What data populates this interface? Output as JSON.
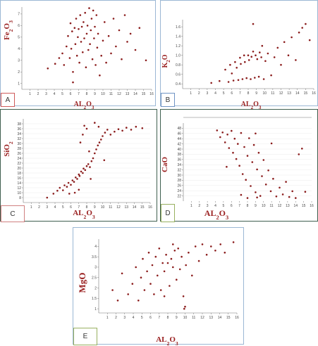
{
  "panels": [
    {
      "label": "A",
      "colors": {
        "frame": "#9bb7d4",
        "tag_border": "#cf5b5b"
      }
    },
    {
      "label": "B",
      "colors": {
        "frame": "#9bb7d4",
        "tag_border": "#6f93c4"
      }
    },
    {
      "label": "C",
      "colors": {
        "frame": "#3f5f4f",
        "tag_border": "#d08080"
      }
    },
    {
      "label": "D",
      "colors": {
        "frame": "#3f5f4f",
        "tag_border": "#98b060"
      }
    },
    {
      "label": "E",
      "colors": {
        "frame": "#9bb7d4",
        "tag_border": "#98b060"
      }
    }
  ],
  "chart_data": [
    {
      "type": "scatter",
      "xlabel": "AL₂O₃",
      "ylabel": "Fe₂O₃",
      "xlim": [
        0,
        16
      ],
      "ylim": [
        0.5,
        7.6
      ],
      "xticks": [
        "1",
        "2",
        "3",
        "4",
        "5",
        "6",
        "7",
        "8",
        "9",
        "10",
        "11",
        "12",
        "13",
        "14",
        "15",
        "16"
      ],
      "yticks": [
        "1",
        "2",
        "3",
        "4",
        "5",
        "6",
        "7"
      ],
      "points": [
        [
          3.2,
          2.3
        ],
        [
          4.1,
          2.7
        ],
        [
          4.6,
          3.2
        ],
        [
          5.0,
          3.6
        ],
        [
          5.2,
          2.6
        ],
        [
          5.5,
          4.2
        ],
        [
          5.7,
          5.1
        ],
        [
          5.9,
          3.2
        ],
        [
          6.0,
          6.2
        ],
        [
          6.1,
          4.0
        ],
        [
          6.2,
          5.5
        ],
        [
          6.3,
          2.0
        ],
        [
          6.3,
          1.1
        ],
        [
          6.5,
          5.8
        ],
        [
          6.6,
          4.4
        ],
        [
          6.7,
          6.6
        ],
        [
          6.8,
          3.4
        ],
        [
          6.9,
          5.0
        ],
        [
          7.0,
          5.7
        ],
        [
          7.1,
          2.8
        ],
        [
          7.2,
          6.9
        ],
        [
          7.3,
          4.6
        ],
        [
          7.4,
          5.9
        ],
        [
          7.5,
          3.7
        ],
        [
          7.6,
          6.3
        ],
        [
          7.7,
          4.9
        ],
        [
          7.8,
          7.1
        ],
        [
          7.9,
          2.4
        ],
        [
          8.0,
          5.3
        ],
        [
          8.1,
          6.0
        ],
        [
          8.2,
          3.9
        ],
        [
          8.3,
          7.5
        ],
        [
          8.4,
          4.4
        ],
        [
          8.5,
          5.6
        ],
        [
          8.6,
          6.6
        ],
        [
          8.7,
          3.1
        ],
        [
          8.8,
          7.3
        ],
        [
          8.9,
          4.9
        ],
        [
          9.0,
          5.9
        ],
        [
          9.1,
          2.6
        ],
        [
          9.2,
          6.9
        ],
        [
          9.3,
          4.1
        ],
        [
          9.4,
          5.3
        ],
        [
          9.6,
          1.7
        ],
        [
          9.8,
          3.4
        ],
        [
          10.0,
          4.7
        ],
        [
          10.2,
          6.3
        ],
        [
          10.4,
          2.8
        ],
        [
          10.7,
          5.1
        ],
        [
          11.0,
          3.6
        ],
        [
          11.3,
          6.6
        ],
        [
          11.6,
          4.2
        ],
        [
          12.0,
          5.6
        ],
        [
          12.3,
          3.1
        ],
        [
          12.7,
          6.9
        ],
        [
          13.0,
          4.6
        ],
        [
          13.4,
          5.3
        ],
        [
          14.0,
          3.9
        ],
        [
          14.5,
          5.8
        ],
        [
          15.3,
          3.0
        ]
      ]
    },
    {
      "type": "scatter",
      "xlabel": "AL₂O₃",
      "ylabel": "K₂O",
      "xlim": [
        0,
        16
      ],
      "ylim": [
        0.3,
        1.75
      ],
      "xticks": [
        "1",
        "2",
        "3",
        "4",
        "5",
        "6",
        "7",
        "8",
        "9",
        "10",
        "11",
        "12",
        "13",
        "14",
        "15",
        "16"
      ],
      "yticks": [
        "0.4",
        "0.6",
        "0.8",
        "1.0",
        "1.2",
        "1.4",
        "1.6"
      ],
      "points": [
        [
          3.5,
          0.42
        ],
        [
          4.5,
          0.46
        ],
        [
          5.2,
          0.7
        ],
        [
          5.6,
          0.44
        ],
        [
          5.8,
          0.8
        ],
        [
          6.0,
          0.62
        ],
        [
          6.2,
          0.47
        ],
        [
          6.4,
          0.86
        ],
        [
          6.6,
          0.74
        ],
        [
          6.8,
          0.48
        ],
        [
          7.0,
          0.95
        ],
        [
          7.1,
          0.82
        ],
        [
          7.3,
          0.5
        ],
        [
          7.5,
          1.0
        ],
        [
          7.6,
          0.86
        ],
        [
          7.8,
          0.52
        ],
        [
          8.0,
          1.0
        ],
        [
          8.1,
          0.9
        ],
        [
          8.3,
          0.5
        ],
        [
          8.4,
          0.97
        ],
        [
          8.6,
          1.08
        ],
        [
          8.8,
          0.53
        ],
        [
          8.9,
          1.0
        ],
        [
          9.1,
          0.92
        ],
        [
          9.3,
          0.55
        ],
        [
          9.4,
          1.06
        ],
        [
          9.6,
          0.96
        ],
        [
          9.7,
          1.2
        ],
        [
          9.9,
          0.5
        ],
        [
          10.1,
          0.88
        ],
        [
          10.4,
          1.04
        ],
        [
          10.8,
          0.58
        ],
        [
          11.2,
          0.96
        ],
        [
          11.6,
          1.16
        ],
        [
          12.0,
          0.8
        ],
        [
          12.4,
          1.28
        ],
        [
          12.9,
          1.0
        ],
        [
          13.3,
          1.38
        ],
        [
          13.8,
          0.9
        ],
        [
          14.2,
          1.48
        ],
        [
          14.6,
          1.58
        ],
        [
          15.0,
          1.66
        ],
        [
          8.6,
          1.66
        ],
        [
          15.5,
          1.32
        ]
      ]
    },
    {
      "type": "scatter",
      "xlabel": "AL₂O₃",
      "ylabel": "SiO₂",
      "xlim": [
        0,
        16
      ],
      "ylim": [
        6,
        40
      ],
      "xticks": [
        "1",
        "2",
        "3",
        "4",
        "5",
        "6",
        "7",
        "8",
        "9",
        "10",
        "11",
        "12",
        "13",
        "14",
        "15",
        "16"
      ],
      "yticks": [
        "8",
        "10",
        "12",
        "14",
        "16",
        "18",
        "20",
        "22",
        "24",
        "26",
        "28",
        "30",
        "32",
        "34",
        "36",
        "38"
      ],
      "points": [
        [
          3.0,
          8.0
        ],
        [
          3.8,
          9.6
        ],
        [
          4.3,
          10.8
        ],
        [
          4.6,
          12.0
        ],
        [
          5.0,
          11.0
        ],
        [
          5.2,
          13.0
        ],
        [
          5.5,
          12.4
        ],
        [
          5.7,
          14.0
        ],
        [
          6.0,
          13.2
        ],
        [
          6.2,
          15.0
        ],
        [
          6.4,
          14.4
        ],
        [
          6.6,
          16.2
        ],
        [
          6.8,
          15.6
        ],
        [
          7.0,
          17.4
        ],
        [
          7.1,
          16.8
        ],
        [
          7.3,
          18.6
        ],
        [
          7.5,
          18.0
        ],
        [
          7.6,
          19.8
        ],
        [
          7.8,
          19.2
        ],
        [
          8.0,
          20.8
        ],
        [
          8.2,
          21.6
        ],
        [
          8.4,
          20.4
        ],
        [
          8.6,
          22.8
        ],
        [
          8.8,
          24.0
        ],
        [
          9.0,
          26.0
        ],
        [
          9.2,
          27.6
        ],
        [
          9.4,
          29.2
        ],
        [
          9.6,
          30.4
        ],
        [
          9.8,
          31.6
        ],
        [
          10.0,
          33.0
        ],
        [
          10.3,
          34.4
        ],
        [
          10.6,
          35.6
        ],
        [
          11.0,
          33.6
        ],
        [
          11.5,
          34.8
        ],
        [
          12.0,
          35.8
        ],
        [
          12.5,
          35.2
        ],
        [
          13.0,
          36.4
        ],
        [
          13.6,
          35.6
        ],
        [
          14.2,
          36.8
        ],
        [
          15.0,
          36.2
        ],
        [
          7.2,
          30.4
        ],
        [
          7.5,
          33.6
        ],
        [
          7.7,
          37.2
        ],
        [
          8.0,
          36.0
        ],
        [
          8.3,
          26.8
        ],
        [
          9.0,
          38.4
        ],
        [
          9.5,
          36.8
        ],
        [
          6.5,
          10.0
        ],
        [
          7.0,
          11.2
        ],
        [
          8.5,
          15.6
        ],
        [
          5.8,
          9.6
        ],
        [
          10.2,
          23.2
        ]
      ]
    },
    {
      "type": "scatter",
      "xlabel": "AL₂O₃",
      "ylabel": "CaO",
      "xlim": [
        0,
        16
      ],
      "ylim": [
        20,
        50
      ],
      "xticks": [
        "1",
        "2",
        "3",
        "4",
        "5",
        "6",
        "7",
        "8",
        "9",
        "10",
        "11",
        "12",
        "13",
        "14",
        "15",
        "16"
      ],
      "yticks": [
        "22",
        "24",
        "26",
        "28",
        "30",
        "32",
        "34",
        "36",
        "38",
        "40",
        "42",
        "44",
        "46",
        "48"
      ],
      "points": [
        [
          4.2,
          47.2
        ],
        [
          4.6,
          44.6
        ],
        [
          4.9,
          46.4
        ],
        [
          5.2,
          42.6
        ],
        [
          5.5,
          45.6
        ],
        [
          5.7,
          40.4
        ],
        [
          6.0,
          47.0
        ],
        [
          6.2,
          38.6
        ],
        [
          6.4,
          44.0
        ],
        [
          6.6,
          36.2
        ],
        [
          6.8,
          42.0
        ],
        [
          7.0,
          33.6
        ],
        [
          7.2,
          46.2
        ],
        [
          7.4,
          30.4
        ],
        [
          7.6,
          40.8
        ],
        [
          7.8,
          28.2
        ],
        [
          8.0,
          37.4
        ],
        [
          8.2,
          44.2
        ],
        [
          8.4,
          25.8
        ],
        [
          8.6,
          35.0
        ],
        [
          8.8,
          41.6
        ],
        [
          9.0,
          23.4
        ],
        [
          9.2,
          32.2
        ],
        [
          9.4,
          38.6
        ],
        [
          9.6,
          22.0
        ],
        [
          9.8,
          29.6
        ],
        [
          10.0,
          35.8
        ],
        [
          10.3,
          26.4
        ],
        [
          10.6,
          31.8
        ],
        [
          10.9,
          23.8
        ],
        [
          11.2,
          28.6
        ],
        [
          11.6,
          21.8
        ],
        [
          12.0,
          25.2
        ],
        [
          12.4,
          22.6
        ],
        [
          12.8,
          27.4
        ],
        [
          13.2,
          21.6
        ],
        [
          13.6,
          23.8
        ],
        [
          14.0,
          21.2
        ],
        [
          14.4,
          38.0
        ],
        [
          14.8,
          40.2
        ],
        [
          15.2,
          23.6
        ],
        [
          8.0,
          21.2
        ],
        [
          9.0,
          46.0
        ],
        [
          9.2,
          21.4
        ],
        [
          11.0,
          42.2
        ],
        [
          7.2,
          22.4
        ],
        [
          5.4,
          33.2
        ]
      ]
    },
    {
      "type": "scatter",
      "xlabel": "AL₂O₃",
      "ylabel": "MgO",
      "xlim": [
        0,
        16
      ],
      "ylim": [
        0.8,
        4.35
      ],
      "xticks": [
        "1",
        "2",
        "3",
        "4",
        "5",
        "6",
        "7",
        "8",
        "9",
        "10",
        "11",
        "12",
        "13",
        "14",
        "15",
        "16"
      ],
      "yticks": [
        "1",
        "1.5",
        "2",
        "2.5",
        "3",
        "3.5",
        "4"
      ],
      "points": [
        [
          1.6,
          1.9
        ],
        [
          2.2,
          1.4
        ],
        [
          2.7,
          2.7
        ],
        [
          3.4,
          1.7
        ],
        [
          3.9,
          2.2
        ],
        [
          4.3,
          3.0
        ],
        [
          4.6,
          1.4
        ],
        [
          4.9,
          2.5
        ],
        [
          5.1,
          3.4
        ],
        [
          5.3,
          1.9
        ],
        [
          5.6,
          2.8
        ],
        [
          5.8,
          3.7
        ],
        [
          6.0,
          2.2
        ],
        [
          6.2,
          3.1
        ],
        [
          6.4,
          1.7
        ],
        [
          6.6,
          3.5
        ],
        [
          6.8,
          2.6
        ],
        [
          7.0,
          3.9
        ],
        [
          7.2,
          1.9
        ],
        [
          7.4,
          3.2
        ],
        [
          7.6,
          2.8
        ],
        [
          7.8,
          3.6
        ],
        [
          8.0,
          3.2
        ],
        [
          8.2,
          2.1
        ],
        [
          8.4,
          3.4
        ],
        [
          8.6,
          3.0
        ],
        [
          8.8,
          3.8
        ],
        [
          9.0,
          2.4
        ],
        [
          9.2,
          3.9
        ],
        [
          9.4,
          2.9
        ],
        [
          9.6,
          3.5
        ],
        [
          9.8,
          1.6
        ],
        [
          10.0,
          1.1
        ],
        [
          10.1,
          3.1
        ],
        [
          10.4,
          3.7
        ],
        [
          10.8,
          2.6
        ],
        [
          11.2,
          4.0
        ],
        [
          11.6,
          3.3
        ],
        [
          12.0,
          4.1
        ],
        [
          12.5,
          3.6
        ],
        [
          13.0,
          4.0
        ],
        [
          13.5,
          3.8
        ],
        [
          14.1,
          4.1
        ],
        [
          14.6,
          3.7
        ],
        [
          15.6,
          4.2
        ],
        [
          8.6,
          4.1
        ],
        [
          7.6,
          1.6
        ],
        [
          9.9,
          1.0
        ]
      ]
    }
  ]
}
